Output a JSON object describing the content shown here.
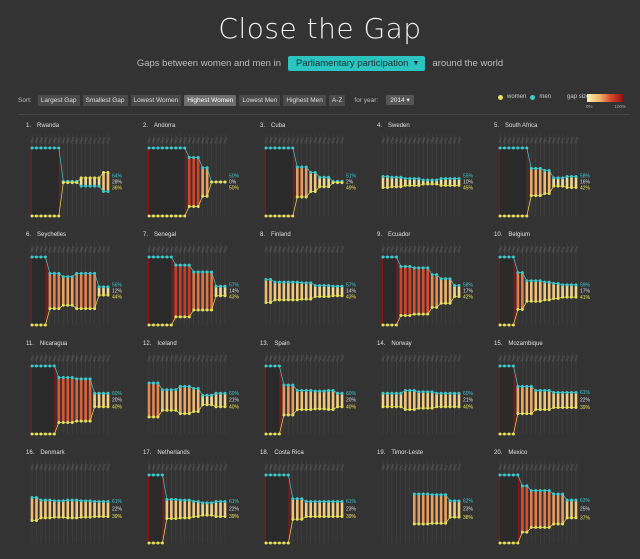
{
  "page": {
    "title": "Close the Gap",
    "subtitle_before": "Gaps between women and men in",
    "subtitle_after": "around the world",
    "dropdown_value": "Parliamentary participation"
  },
  "toolbar": {
    "sort_label": "Sort:",
    "buttons": [
      "Largest Gap",
      "Smallest Gap",
      "Lowest Women",
      "Highest Women",
      "Lowest Men",
      "Highest Men",
      "A-Z"
    ],
    "active_index": 3,
    "year_label": "for year:",
    "year_value": "2014"
  },
  "legend": {
    "women_label": "women",
    "men_label": "men",
    "gap_label": "gap size:",
    "gap_min": "0%",
    "gap_max": "100%",
    "women_color": "#e8e05c",
    "men_color": "#3ec9cc"
  },
  "chart_data": {
    "type": "line",
    "description_series": "Per-country small multiples: women vs men share over years; vertical bars colored by gap size",
    "years": [
      "1997",
      "1998",
      "1999",
      "2000",
      "2001",
      "2002",
      "2003",
      "2004",
      "2005",
      "2006",
      "2007",
      "2008",
      "2009",
      "2010",
      "2011",
      "2012",
      "2013",
      "2014"
    ],
    "countries": [
      {
        "rank": "1.",
        "name": "Rwanda",
        "men": [
          100,
          100,
          100,
          100,
          100,
          100,
          100,
          51,
          51,
          51,
          51,
          44,
          44,
          44,
          44,
          44,
          36,
          36
        ],
        "women": [
          0,
          0,
          0,
          0,
          0,
          0,
          0,
          49,
          49,
          49,
          49,
          56,
          56,
          56,
          56,
          56,
          64,
          64
        ],
        "labels": [
          "64%",
          "28%",
          "36%"
        ]
      },
      {
        "rank": "2.",
        "name": "Andorra",
        "men": [
          100,
          100,
          100,
          100,
          100,
          100,
          100,
          100,
          100,
          86,
          86,
          86,
          71,
          71,
          50,
          50,
          50,
          50
        ],
        "women": [
          0,
          0,
          0,
          0,
          0,
          0,
          0,
          0,
          0,
          14,
          14,
          14,
          29,
          29,
          50,
          50,
          50,
          50
        ],
        "labels": [
          "50%",
          "0%",
          "50%"
        ]
      },
      {
        "rank": "3.",
        "name": "Cuba",
        "men": [
          100,
          100,
          100,
          100,
          100,
          100,
          100,
          72,
          72,
          72,
          64,
          64,
          57,
          57,
          57,
          51,
          51,
          51
        ],
        "women": [
          0,
          0,
          0,
          0,
          0,
          0,
          0,
          28,
          28,
          28,
          36,
          36,
          43,
          43,
          43,
          49,
          49,
          49
        ],
        "labels": [
          "51%",
          "2%",
          "49%"
        ]
      },
      {
        "rank": "4.",
        "name": "Sweden",
        "men": [
          58,
          58,
          57,
          57,
          57,
          55,
          55,
          55,
          55,
          53,
          53,
          53,
          53,
          55,
          55,
          55,
          55,
          55
        ],
        "women": [
          42,
          42,
          43,
          43,
          43,
          45,
          45,
          45,
          45,
          47,
          47,
          47,
          47,
          45,
          45,
          45,
          45,
          45
        ],
        "labels": [
          "55%",
          "10%",
          "45%"
        ]
      },
      {
        "rank": "5.",
        "name": "South Africa",
        "men": [
          100,
          100,
          100,
          100,
          100,
          100,
          100,
          70,
          70,
          70,
          67,
          67,
          56,
          56,
          56,
          58,
          58,
          58
        ],
        "women": [
          0,
          0,
          0,
          0,
          0,
          0,
          0,
          30,
          30,
          30,
          33,
          33,
          44,
          44,
          44,
          42,
          42,
          42
        ],
        "labels": [
          "58%",
          "16%",
          "42%"
        ]
      },
      {
        "rank": "6.",
        "name": "Seychelles",
        "men": [
          100,
          100,
          100,
          100,
          76,
          76,
          76,
          71,
          71,
          71,
          76,
          76,
          76,
          76,
          76,
          56,
          56,
          56
        ],
        "women": [
          0,
          0,
          0,
          0,
          24,
          24,
          24,
          29,
          29,
          29,
          24,
          24,
          24,
          24,
          24,
          44,
          44,
          44
        ],
        "labels": [
          "56%",
          "12%",
          "44%"
        ]
      },
      {
        "rank": "7.",
        "name": "Senegal",
        "men": [
          100,
          100,
          100,
          100,
          100,
          100,
          88,
          88,
          88,
          88,
          78,
          78,
          78,
          78,
          78,
          57,
          57,
          57
        ],
        "women": [
          0,
          0,
          0,
          0,
          0,
          0,
          12,
          12,
          12,
          12,
          22,
          22,
          22,
          22,
          22,
          43,
          43,
          43
        ],
        "labels": [
          "57%",
          "14%",
          "43%"
        ]
      },
      {
        "rank": "8.",
        "name": "Finland",
        "men": [
          67,
          67,
          63,
          63,
          63,
          63,
          63,
          63,
          62,
          62,
          62,
          58,
          58,
          58,
          58,
          57,
          57,
          57
        ],
        "women": [
          33,
          33,
          37,
          37,
          37,
          37,
          37,
          37,
          38,
          38,
          38,
          42,
          42,
          42,
          42,
          43,
          43,
          43
        ],
        "labels": [
          "57%",
          "14%",
          "43%"
        ]
      },
      {
        "rank": "9.",
        "name": "Ecuador",
        "men": [
          100,
          100,
          100,
          100,
          86,
          86,
          86,
          84,
          84,
          84,
          84,
          74,
          74,
          68,
          68,
          68,
          58,
          58
        ],
        "women": [
          0,
          0,
          0,
          0,
          14,
          14,
          14,
          16,
          16,
          16,
          16,
          26,
          26,
          32,
          32,
          32,
          42,
          42
        ],
        "labels": [
          "58%",
          "17%",
          "42%"
        ]
      },
      {
        "rank": "10.",
        "name": "Belgium",
        "men": [
          100,
          100,
          100,
          100,
          77,
          77,
          65,
          65,
          65,
          65,
          63,
          63,
          61,
          61,
          59,
          59,
          59,
          59
        ],
        "women": [
          0,
          0,
          0,
          0,
          23,
          23,
          35,
          35,
          35,
          35,
          37,
          37,
          39,
          39,
          41,
          41,
          41,
          41
        ],
        "labels": [
          "59%",
          "17%",
          "41%"
        ]
      },
      {
        "rank": "11.",
        "name": "Nicaragua",
        "men": [
          100,
          100,
          100,
          100,
          100,
          100,
          83,
          83,
          83,
          83,
          81,
          81,
          81,
          81,
          60,
          60,
          60,
          60
        ],
        "women": [
          0,
          0,
          0,
          0,
          0,
          0,
          17,
          17,
          17,
          17,
          19,
          19,
          19,
          19,
          40,
          40,
          40,
          40
        ],
        "labels": [
          "60%",
          "20%",
          "40%"
        ]
      },
      {
        "rank": "12.",
        "name": "Iceland",
        "men": [
          75,
          75,
          75,
          65,
          65,
          65,
          65,
          70,
          70,
          70,
          67,
          67,
          57,
          57,
          57,
          60,
          60,
          60
        ],
        "women": [
          25,
          25,
          25,
          35,
          35,
          35,
          35,
          30,
          30,
          30,
          33,
          33,
          43,
          43,
          43,
          40,
          40,
          40
        ],
        "labels": [
          "60%",
          "21%",
          "40%"
        ]
      },
      {
        "rank": "13.",
        "name": "Spain",
        "men": [
          100,
          100,
          100,
          100,
          72,
          72,
          72,
          64,
          64,
          64,
          64,
          63,
          63,
          63,
          64,
          64,
          60,
          60
        ],
        "women": [
          0,
          0,
          0,
          0,
          28,
          28,
          28,
          36,
          36,
          36,
          36,
          37,
          37,
          37,
          36,
          36,
          40,
          40
        ],
        "labels": [
          "60%",
          "20%",
          "40%"
        ]
      },
      {
        "rank": "14.",
        "name": "Norway",
        "men": [
          60,
          60,
          60,
          60,
          60,
          64,
          64,
          64,
          62,
          62,
          62,
          62,
          60,
          60,
          60,
          60,
          60,
          60
        ],
        "women": [
          40,
          40,
          40,
          40,
          40,
          36,
          36,
          36,
          38,
          38,
          38,
          38,
          40,
          40,
          40,
          40,
          40,
          40
        ],
        "labels": [
          "60%",
          "21%",
          "40%"
        ]
      },
      {
        "rank": "15.",
        "name": "Mozambique",
        "men": [
          100,
          100,
          100,
          100,
          70,
          70,
          70,
          70,
          64,
          64,
          64,
          64,
          61,
          61,
          61,
          61,
          61,
          61
        ],
        "women": [
          0,
          0,
          0,
          0,
          30,
          30,
          30,
          30,
          36,
          36,
          36,
          36,
          39,
          39,
          39,
          39,
          39,
          39
        ],
        "labels": [
          "61%",
          "22%",
          "39%"
        ]
      },
      {
        "rank": "16.",
        "name": "Denmark",
        "men": [
          67,
          67,
          63,
          63,
          63,
          62,
          62,
          62,
          63,
          63,
          63,
          62,
          62,
          62,
          61,
          61,
          61,
          61
        ],
        "women": [
          33,
          33,
          37,
          37,
          37,
          38,
          38,
          38,
          37,
          37,
          37,
          38,
          38,
          38,
          39,
          39,
          39,
          39
        ],
        "labels": [
          "61%",
          "22%",
          "39%"
        ]
      },
      {
        "rank": "17.",
        "name": "Netherlands",
        "men": [
          100,
          100,
          100,
          100,
          64,
          64,
          64,
          63,
          63,
          63,
          61,
          61,
          59,
          59,
          59,
          61,
          61,
          61
        ],
        "women": [
          0,
          0,
          0,
          0,
          36,
          36,
          36,
          37,
          37,
          37,
          39,
          39,
          41,
          41,
          41,
          39,
          39,
          39
        ],
        "labels": [
          "61%",
          "22%",
          "39%"
        ]
      },
      {
        "rank": "18.",
        "name": "Costa Rica",
        "men": [
          100,
          100,
          100,
          100,
          100,
          100,
          65,
          65,
          65,
          61,
          61,
          61,
          61,
          61,
          61,
          61,
          61,
          61
        ],
        "women": [
          0,
          0,
          0,
          0,
          0,
          0,
          35,
          35,
          35,
          39,
          39,
          39,
          39,
          39,
          39,
          39,
          39,
          39
        ],
        "labels": [
          "61%",
          "23%",
          "39%"
        ]
      },
      {
        "rank": "19.",
        "name": "Timor-Leste",
        "men": [
          null,
          null,
          null,
          null,
          null,
          null,
          null,
          72,
          72,
          72,
          72,
          71,
          71,
          71,
          71,
          62,
          62,
          62
        ],
        "women": [
          null,
          null,
          null,
          null,
          null,
          null,
          null,
          28,
          28,
          28,
          28,
          29,
          29,
          29,
          29,
          38,
          38,
          38
        ],
        "labels": [
          "62%",
          "23%",
          "38%"
        ]
      },
      {
        "rank": "20.",
        "name": "Mexico",
        "men": [
          100,
          100,
          100,
          100,
          100,
          84,
          84,
          77,
          77,
          77,
          77,
          77,
          72,
          72,
          72,
          63,
          63,
          63
        ],
        "women": [
          0,
          0,
          0,
          0,
          0,
          16,
          16,
          23,
          23,
          23,
          23,
          23,
          28,
          28,
          28,
          37,
          37,
          37
        ],
        "labels": [
          "63%",
          "25%",
          "37%"
        ]
      }
    ]
  }
}
